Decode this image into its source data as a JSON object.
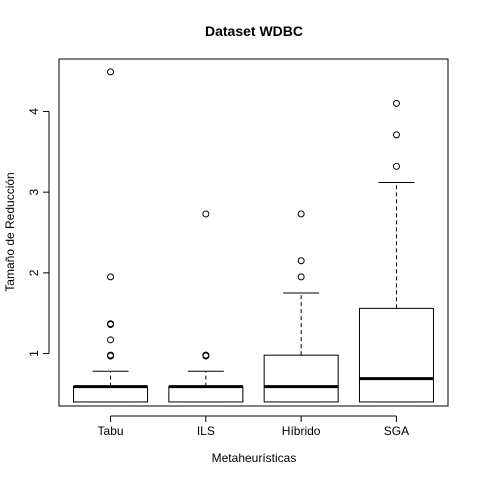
{
  "chart_data": {
    "type": "boxplot",
    "title": "Dataset WDBC",
    "xlabel": "Metaheurísticas",
    "ylabel": "Tamaño de Reducción",
    "ylim": [
      0.35,
      4.65
    ],
    "yticks": [
      1,
      2,
      3,
      4
    ],
    "grid": false,
    "categories": [
      "Tabu",
      "ILS",
      "Híbrido",
      "SGA"
    ],
    "boxes": [
      {
        "min": 0.4,
        "q1": 0.4,
        "median": 0.59,
        "q3": 0.59,
        "max": 0.78,
        "outliers": [
          0.97,
          0.98,
          1.17,
          1.36,
          1.37,
          1.95,
          4.49
        ]
      },
      {
        "min": 0.4,
        "q1": 0.4,
        "median": 0.59,
        "q3": 0.59,
        "max": 0.78,
        "outliers": [
          0.97,
          0.98,
          2.73
        ]
      },
      {
        "min": 0.4,
        "q1": 0.4,
        "median": 0.59,
        "q3": 0.98,
        "max": 1.75,
        "outliers": [
          1.95,
          2.15,
          2.73
        ]
      },
      {
        "min": 0.4,
        "q1": 0.4,
        "median": 0.69,
        "q3": 1.56,
        "max": 3.12,
        "outliers": [
          3.32,
          3.71,
          4.1
        ]
      }
    ]
  }
}
